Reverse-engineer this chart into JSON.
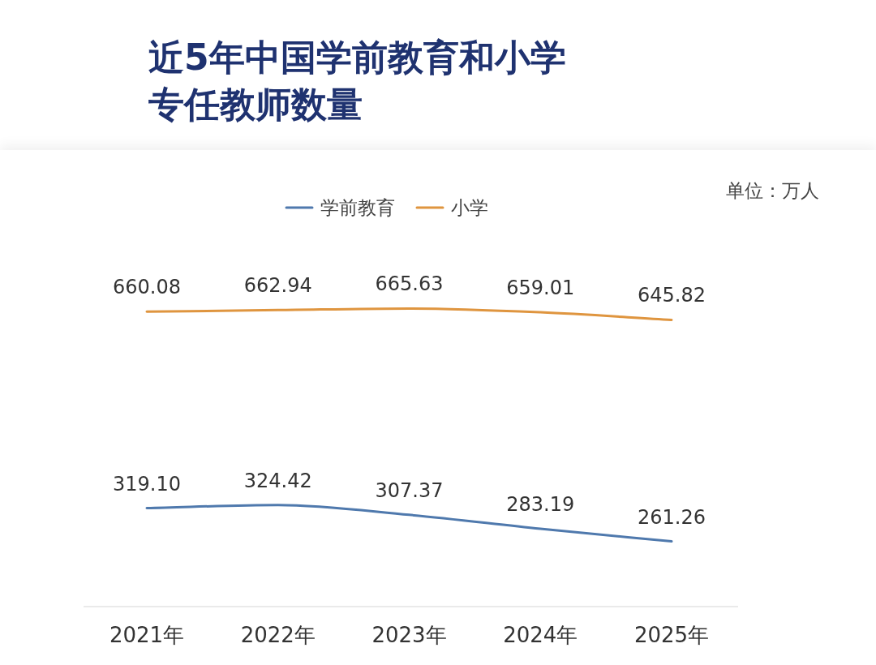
{
  "chart_data": {
    "type": "line",
    "title": "近5年中国学前教育和小学专任教师数量",
    "categories": [
      "2021年",
      "2022年",
      "2023年",
      "2024年",
      "2025年"
    ],
    "series": [
      {
        "name": "学前教育",
        "color": "#4f79ad",
        "values": [
          319.1,
          324.42,
          307.37,
          283.19,
          261.26
        ],
        "value_labels": [
          "319.10",
          "324.42",
          "307.37",
          "283.19",
          "261.26"
        ]
      },
      {
        "name": "小学",
        "color": "#df953f",
        "values": [
          660.08,
          662.94,
          665.63,
          659.01,
          645.82
        ],
        "value_labels": [
          "660.08",
          "662.94",
          "665.63",
          "659.01",
          "645.82"
        ]
      }
    ],
    "annotations": [
      "单位：万人"
    ],
    "legend": "top"
  }
}
